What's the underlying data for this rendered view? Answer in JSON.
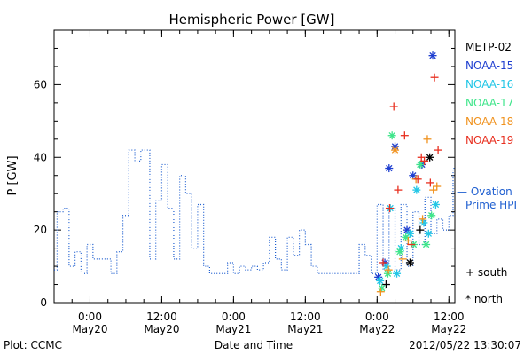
{
  "chart_data": {
    "type": "line",
    "title": "Hemispheric Power [GW]",
    "xlabel": "Date and Time",
    "ylabel": "P [GW]",
    "ylim": [
      0,
      75
    ],
    "yticks": [
      0,
      20,
      40,
      60
    ],
    "x_unit": "hours since 2012-05-19 18:00 UT",
    "xlim": [
      0,
      67
    ],
    "xticks": [
      {
        "x": 6,
        "time": "0:00",
        "date": "May20"
      },
      {
        "x": 18,
        "time": "12:00",
        "date": "May20"
      },
      {
        "x": 30,
        "time": "0:00",
        "date": "May21"
      },
      {
        "x": 42,
        "time": "12:00",
        "date": "May21"
      },
      {
        "x": 54,
        "time": "0:00",
        "date": "May22"
      },
      {
        "x": 66,
        "time": "12:00",
        "date": "May22"
      }
    ],
    "legend": {
      "placement": "right",
      "entries": [
        {
          "name": "METP-02",
          "color": "#000000"
        },
        {
          "name": "NOAA-15",
          "color": "#1f3fd0"
        },
        {
          "name": "NOAA-16",
          "color": "#22c6e6"
        },
        {
          "name": "NOAA-17",
          "color": "#3ee58a"
        },
        {
          "name": "NOAA-18",
          "color": "#f0921e"
        },
        {
          "name": "NOAA-19",
          "color": "#e83020"
        }
      ]
    },
    "ovation_series": {
      "name": "Ovation Prime HPI",
      "label_lines": [
        "— Ovation",
        "Prime HPI"
      ],
      "color": "#1f5fd0",
      "style": "dotted-step",
      "points": [
        [
          0,
          9
        ],
        [
          0.5,
          25
        ],
        [
          1.5,
          26
        ],
        [
          2.5,
          10
        ],
        [
          3.5,
          14
        ],
        [
          4.5,
          8
        ],
        [
          5.5,
          16
        ],
        [
          6.5,
          12
        ],
        [
          7.5,
          12
        ],
        [
          9.5,
          8
        ],
        [
          10.5,
          14
        ],
        [
          11.5,
          24
        ],
        [
          12.5,
          42
        ],
        [
          13.5,
          39
        ],
        [
          14.5,
          42
        ],
        [
          16,
          12
        ],
        [
          17,
          28
        ],
        [
          18,
          38
        ],
        [
          19,
          26
        ],
        [
          20,
          12
        ],
        [
          21,
          35
        ],
        [
          22,
          30
        ],
        [
          23,
          15
        ],
        [
          24,
          27
        ],
        [
          25,
          10
        ],
        [
          26,
          8
        ],
        [
          27,
          8
        ],
        [
          28,
          8
        ],
        [
          29,
          11
        ],
        [
          30,
          8
        ],
        [
          31,
          10
        ],
        [
          32,
          9
        ],
        [
          33,
          10
        ],
        [
          34,
          9
        ],
        [
          35,
          11
        ],
        [
          36,
          18
        ],
        [
          37,
          12
        ],
        [
          38,
          9
        ],
        [
          39,
          18
        ],
        [
          40,
          13
        ],
        [
          41,
          20
        ],
        [
          42,
          16
        ],
        [
          43,
          10
        ],
        [
          44,
          8
        ],
        [
          50,
          8
        ],
        [
          51,
          16
        ],
        [
          52,
          13
        ],
        [
          53,
          8
        ],
        [
          54,
          27
        ],
        [
          55,
          9
        ],
        [
          56,
          26
        ],
        [
          57,
          9
        ],
        [
          58,
          27
        ],
        [
          59,
          10
        ],
        [
          60,
          25
        ],
        [
          61,
          16
        ],
        [
          62,
          29
        ],
        [
          63,
          19
        ],
        [
          64,
          23
        ],
        [
          65,
          20
        ],
        [
          66,
          24
        ],
        [
          66.7,
          37
        ]
      ]
    },
    "satellite_series": [
      {
        "name": "METP-02",
        "color": "#000000",
        "points": [
          {
            "x": 55.5,
            "y": 5,
            "hemisphere": "south"
          },
          {
            "x": 59.5,
            "y": 11,
            "hemisphere": "north"
          },
          {
            "x": 61.2,
            "y": 20,
            "hemisphere": "south"
          },
          {
            "x": 62.8,
            "y": 40,
            "hemisphere": "north"
          }
        ]
      },
      {
        "name": "NOAA-15",
        "color": "#1f3fd0",
        "points": [
          {
            "x": 54.2,
            "y": 7,
            "hemisphere": "north"
          },
          {
            "x": 55.3,
            "y": 11,
            "hemisphere": "north"
          },
          {
            "x": 56,
            "y": 37,
            "hemisphere": "north"
          },
          {
            "x": 57,
            "y": 43,
            "hemisphere": "north"
          },
          {
            "x": 59,
            "y": 20,
            "hemisphere": "north"
          },
          {
            "x": 60,
            "y": 35,
            "hemisphere": "north"
          },
          {
            "x": 61.5,
            "y": 38,
            "hemisphere": "north"
          },
          {
            "x": 63.3,
            "y": 68,
            "hemisphere": "north"
          }
        ]
      },
      {
        "name": "NOAA-16",
        "color": "#22c6e6",
        "points": [
          {
            "x": 54.5,
            "y": 6,
            "hemisphere": "north"
          },
          {
            "x": 55.6,
            "y": 10,
            "hemisphere": "north"
          },
          {
            "x": 56.2,
            "y": 26,
            "hemisphere": "north"
          },
          {
            "x": 57.3,
            "y": 8,
            "hemisphere": "north"
          },
          {
            "x": 58,
            "y": 15,
            "hemisphere": "north"
          },
          {
            "x": 59.5,
            "y": 19,
            "hemisphere": "north"
          },
          {
            "x": 60.6,
            "y": 31,
            "hemisphere": "north"
          },
          {
            "x": 61.8,
            "y": 22,
            "hemisphere": "north"
          },
          {
            "x": 62.6,
            "y": 19,
            "hemisphere": "north"
          },
          {
            "x": 63.8,
            "y": 27,
            "hemisphere": "north"
          }
        ]
      },
      {
        "name": "NOAA-17",
        "color": "#3ee58a",
        "points": [
          {
            "x": 54.8,
            "y": 4,
            "hemisphere": "north"
          },
          {
            "x": 55.8,
            "y": 8,
            "hemisphere": "north"
          },
          {
            "x": 56.5,
            "y": 46,
            "hemisphere": "north"
          },
          {
            "x": 57.8,
            "y": 14,
            "hemisphere": "north"
          },
          {
            "x": 58.8,
            "y": 18,
            "hemisphere": "north"
          },
          {
            "x": 60.1,
            "y": 16,
            "hemisphere": "north"
          },
          {
            "x": 61.2,
            "y": 38,
            "hemisphere": "north"
          },
          {
            "x": 62.2,
            "y": 16,
            "hemisphere": "north"
          },
          {
            "x": 63.1,
            "y": 24,
            "hemisphere": "north"
          }
        ]
      },
      {
        "name": "NOAA-18",
        "color": "#f0921e",
        "points": [
          {
            "x": 54.6,
            "y": 3,
            "hemisphere": "south"
          },
          {
            "x": 55.9,
            "y": 9,
            "hemisphere": "south"
          },
          {
            "x": 57,
            "y": 42,
            "hemisphere": "north"
          },
          {
            "x": 58.3,
            "y": 12,
            "hemisphere": "south"
          },
          {
            "x": 59.2,
            "y": 17,
            "hemisphere": "south"
          },
          {
            "x": 60.5,
            "y": 34,
            "hemisphere": "south"
          },
          {
            "x": 61.6,
            "y": 23,
            "hemisphere": "south"
          },
          {
            "x": 62.4,
            "y": 45,
            "hemisphere": "south"
          },
          {
            "x": 63.4,
            "y": 31,
            "hemisphere": "south"
          },
          {
            "x": 64,
            "y": 32,
            "hemisphere": "south"
          }
        ]
      },
      {
        "name": "NOAA-19",
        "color": "#e83020",
        "points": [
          {
            "x": 55,
            "y": 11,
            "hemisphere": "south"
          },
          {
            "x": 56.1,
            "y": 26,
            "hemisphere": "south"
          },
          {
            "x": 56.8,
            "y": 54,
            "hemisphere": "south"
          },
          {
            "x": 57.5,
            "y": 31,
            "hemisphere": "south"
          },
          {
            "x": 58.6,
            "y": 46,
            "hemisphere": "south"
          },
          {
            "x": 59.7,
            "y": 16,
            "hemisphere": "south"
          },
          {
            "x": 60.8,
            "y": 34,
            "hemisphere": "south"
          },
          {
            "x": 61.9,
            "y": 39,
            "hemisphere": "south"
          },
          {
            "x": 62.9,
            "y": 33,
            "hemisphere": "south"
          },
          {
            "x": 63.6,
            "y": 62,
            "hemisphere": "south"
          },
          {
            "x": 64.2,
            "y": 42,
            "hemisphere": "south"
          },
          {
            "x": 61.4,
            "y": 40,
            "hemisphere": "south"
          }
        ]
      }
    ],
    "marker_key": [
      {
        "symbol": "+",
        "label": "south"
      },
      {
        "symbol": "*",
        "label": "north"
      }
    ]
  },
  "footer": {
    "plot_credit": "Plot: CCMC",
    "timestamp": "2012/05/22 13:30:07"
  }
}
